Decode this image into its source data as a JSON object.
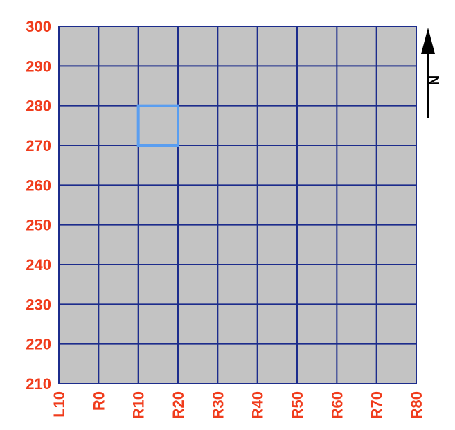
{
  "map": {
    "grid": {
      "x_labels": [
        "L10",
        "R0",
        "R10",
        "R20",
        "R30",
        "R40",
        "R50",
        "R60",
        "R70",
        "R80"
      ],
      "y_labels": [
        "300",
        "290",
        "280",
        "270",
        "260",
        "250",
        "240",
        "230",
        "220",
        "210"
      ],
      "selected_cell": {
        "x_from": "R10",
        "x_to": "R20",
        "y_from": "280",
        "y_to": "270"
      }
    },
    "north_arrow": {
      "label": "N",
      "icon": "north-arrow-icon"
    },
    "colors": {
      "cell_fill": "#c3c3c3",
      "grid_line": "#1c2c8c",
      "label": "#f03c1c",
      "highlight": "#5a9ef0",
      "arrow": "#000000"
    }
  }
}
